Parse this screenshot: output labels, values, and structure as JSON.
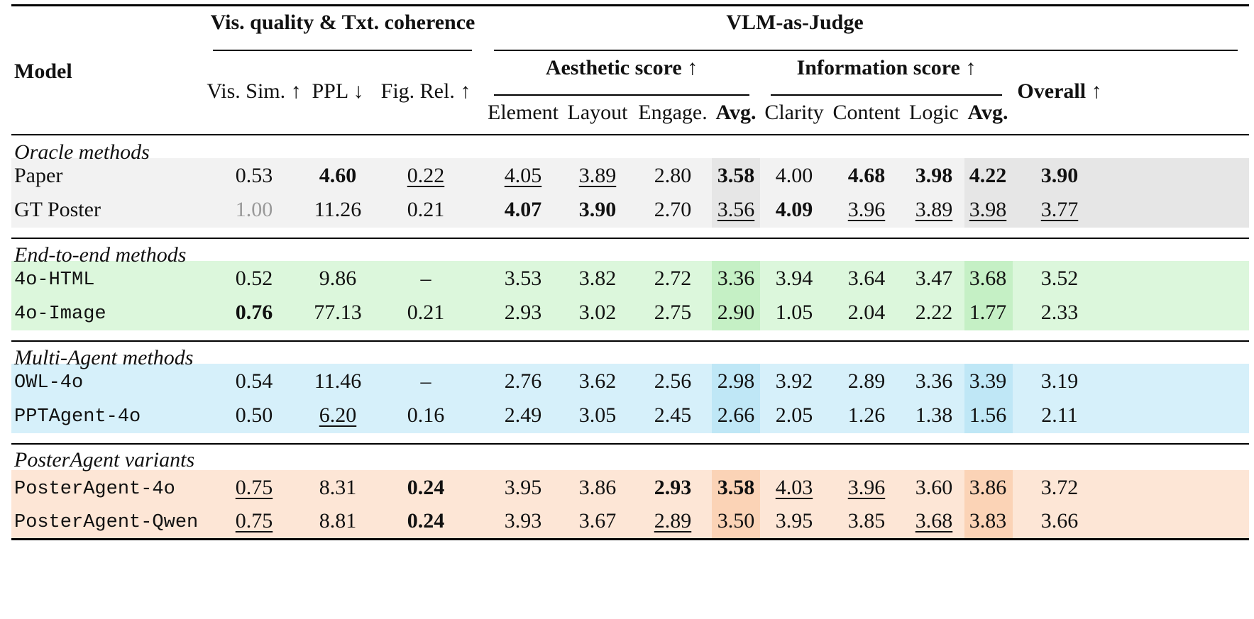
{
  "header": {
    "model": "Model",
    "group_vis": "Vis. quality & Txt. coherence",
    "group_vlm": "VLM-as-Judge",
    "sub_aesthetic": "Aesthetic score ↑",
    "sub_information": "Information score ↑",
    "overall": "Overall ↑",
    "cols": [
      "Vis. Sim. ↑",
      "PPL ↓",
      "Fig. Rel. ↑",
      "Element",
      "Layout",
      "Engage.",
      "Avg.",
      "Clarity",
      "Content",
      "Logic",
      "Avg."
    ]
  },
  "sections": [
    {
      "title": "Oracle methods",
      "band_color": "#f2f2f2",
      "avg_color": "#e6e6e6",
      "rows": [
        {
          "name": "Paper",
          "mono": false,
          "values": [
            "0.53",
            "4.60",
            "0.22",
            "4.05",
            "3.89",
            "2.80",
            "3.58",
            "4.00",
            "4.68",
            "3.98",
            "4.22",
            "3.90"
          ],
          "bold": [
            1,
            6,
            8,
            9,
            10,
            11
          ],
          "underline": [
            2,
            3,
            4
          ],
          "gray": []
        },
        {
          "name": "GT Poster",
          "mono": false,
          "values": [
            "1.00",
            "11.26",
            "0.21",
            "4.07",
            "3.90",
            "2.70",
            "3.56",
            "4.09",
            "3.96",
            "3.89",
            "3.98",
            "3.77"
          ],
          "bold": [
            3,
            4,
            7
          ],
          "underline": [
            6,
            8,
            9,
            10,
            11
          ],
          "gray": [
            0
          ]
        }
      ]
    },
    {
      "title": "End-to-end methods",
      "band_color": "#dcf7dc",
      "avg_color": "#c5f0c5",
      "rows": [
        {
          "name": "4o-HTML",
          "mono": true,
          "values": [
            "0.52",
            "9.86",
            "–",
            "3.53",
            "3.82",
            "2.72",
            "3.36",
            "3.94",
            "3.64",
            "3.47",
            "3.68",
            "3.52"
          ],
          "bold": [],
          "underline": [],
          "gray": []
        },
        {
          "name": "4o-Image",
          "mono": true,
          "values": [
            "0.76",
            "77.13",
            "0.21",
            "2.93",
            "3.02",
            "2.75",
            "2.90",
            "1.05",
            "2.04",
            "2.22",
            "1.77",
            "2.33"
          ],
          "bold": [
            0
          ],
          "underline": [],
          "gray": []
        }
      ]
    },
    {
      "title": "Multi-Agent methods",
      "band_color": "#d6f0fa",
      "avg_color": "#bfe7f6",
      "rows": [
        {
          "name": "OWL-4o",
          "mono": true,
          "values": [
            "0.54",
            "11.46",
            "–",
            "2.76",
            "3.62",
            "2.56",
            "2.98",
            "3.92",
            "2.89",
            "3.36",
            "3.39",
            "3.19"
          ],
          "bold": [],
          "underline": [],
          "gray": []
        },
        {
          "name": "PPTAgent-4o",
          "mono": true,
          "values": [
            "0.50",
            "6.20",
            "0.16",
            "2.49",
            "3.05",
            "2.45",
            "2.66",
            "2.05",
            "1.26",
            "1.38",
            "1.56",
            "2.11"
          ],
          "bold": [],
          "underline": [
            1
          ],
          "gray": []
        }
      ]
    },
    {
      "title": "PosterAgent variants",
      "band_color": "#fde6d6",
      "avg_color": "#fbd3b6",
      "rows": [
        {
          "name": "PosterAgent-4o",
          "mono": true,
          "values": [
            "0.75",
            "8.31",
            "0.24",
            "3.95",
            "3.86",
            "2.93",
            "3.58",
            "4.03",
            "3.96",
            "3.60",
            "3.86",
            "3.72"
          ],
          "bold": [
            2,
            5,
            6
          ],
          "underline": [
            0,
            7,
            8
          ],
          "gray": []
        },
        {
          "name": "PosterAgent-Qwen",
          "mono": true,
          "values": [
            "0.75",
            "8.81",
            "0.24",
            "3.93",
            "3.67",
            "2.89",
            "3.50",
            "3.95",
            "3.85",
            "3.68",
            "3.83",
            "3.66"
          ],
          "bold": [
            2
          ],
          "underline": [
            0,
            5,
            9
          ],
          "gray": []
        }
      ]
    }
  ]
}
